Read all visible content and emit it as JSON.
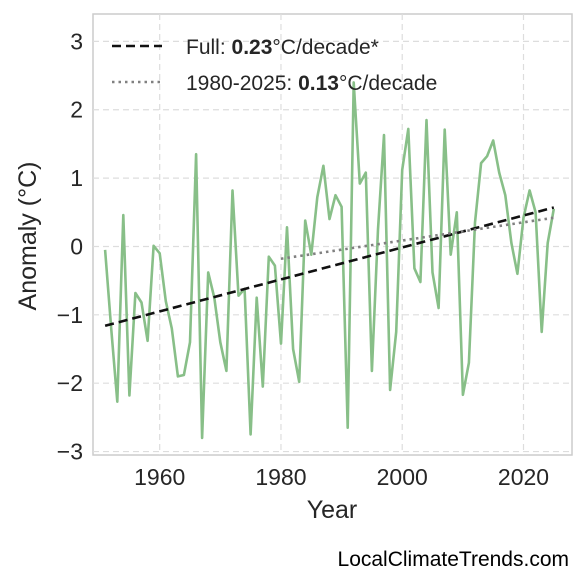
{
  "chart_data": {
    "type": "line",
    "title": "",
    "xlabel": "Year",
    "ylabel": "Anomaly (°C)",
    "xlim": [
      1949,
      2028
    ],
    "ylim": [
      -3.05,
      3.4
    ],
    "grid": true,
    "legend_position": "top-left",
    "xticks": [
      {
        "value": 1960,
        "label": "1960"
      },
      {
        "value": 1980,
        "label": "1980"
      },
      {
        "value": 2000,
        "label": "2000"
      },
      {
        "value": 2020,
        "label": "2020"
      }
    ],
    "yticks": [
      {
        "value": 3,
        "label": "3"
      },
      {
        "value": 2,
        "label": "2"
      },
      {
        "value": 1,
        "label": "1"
      },
      {
        "value": 0,
        "label": "0"
      },
      {
        "value": -1,
        "label": "−1"
      },
      {
        "value": -2,
        "label": "−2"
      },
      {
        "value": -3,
        "label": "−3"
      }
    ],
    "series": [
      {
        "color": "#88bf88",
        "x": [
          1951,
          1952,
          1953,
          1954,
          1955,
          1956,
          1957,
          1958,
          1959,
          1960,
          1961,
          1962,
          1963,
          1964,
          1965,
          1966,
          1967,
          1968,
          1969,
          1970,
          1971,
          1972,
          1973,
          1974,
          1975,
          1976,
          1977,
          1978,
          1979,
          1980,
          1981,
          1982,
          1983,
          1984,
          1985,
          1986,
          1987,
          1988,
          1989,
          1990,
          1991,
          1992,
          1993,
          1994,
          1995,
          1996,
          1997,
          1998,
          1999,
          2000,
          2001,
          2002,
          2003,
          2004,
          2005,
          2006,
          2007,
          2008,
          2009,
          2010,
          2011,
          2012,
          2013,
          2014,
          2015,
          2016,
          2017,
          2018,
          2019,
          2020,
          2021,
          2022,
          2023,
          2024,
          2025
        ],
        "y": [
          -0.05,
          -1.2,
          -2.27,
          0.46,
          -2.18,
          -0.68,
          -0.82,
          -1.38,
          0.01,
          -0.1,
          -0.8,
          -1.2,
          -1.9,
          -1.88,
          -1.4,
          1.35,
          -2.8,
          -0.38,
          -0.75,
          -1.4,
          -1.82,
          0.82,
          -0.72,
          -0.62,
          -2.75,
          -0.75,
          -2.05,
          -0.15,
          -0.28,
          -1.42,
          0.28,
          -1.5,
          -1.98,
          0.38,
          -0.12,
          0.72,
          1.18,
          0.4,
          0.75,
          0.58,
          -2.65,
          2.4,
          0.92,
          1.08,
          -1.82,
          0.25,
          1.63,
          -2.1,
          -1.25,
          1.12,
          1.72,
          -0.32,
          -0.52,
          1.85,
          -0.38,
          -0.9,
          1.71,
          -0.12,
          0.5,
          -2.17,
          -1.7,
          0.35,
          1.22,
          1.32,
          1.55,
          1.08,
          0.75,
          0.05,
          -0.4,
          0.42,
          0.82,
          0.5,
          -1.25,
          0.05,
          0.55
        ]
      }
    ],
    "trend_lines": [
      {
        "label_prefix": "Full: ",
        "label_value": "0.23",
        "label_suffix": "°C/decade*",
        "style": "dashed",
        "color": "#111111",
        "x": [
          1951,
          2025
        ],
        "y": [
          -1.16,
          0.57
        ]
      },
      {
        "label_prefix": "1980-2025: ",
        "label_value": "0.13",
        "label_suffix": "°C/decade",
        "style": "dotted",
        "color": "#808080",
        "x": [
          1980,
          2025
        ],
        "y": [
          -0.18,
          0.42
        ]
      }
    ]
  },
  "credit": "LocalClimateTrends.com"
}
